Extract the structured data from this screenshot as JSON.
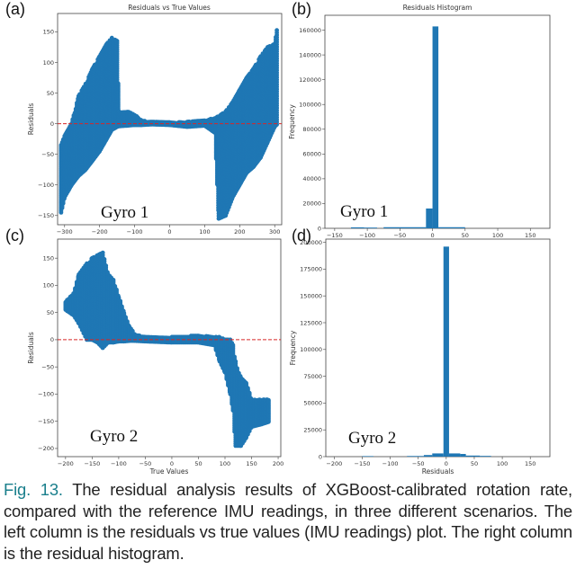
{
  "colors": {
    "marker": "#1f77b4",
    "zero_line": "#d62728",
    "caption_label": "#1a7f8c"
  },
  "chart_data": [
    {
      "panel": "(a)",
      "type": "scatter",
      "title": "Residuals vs True Values",
      "xlabel": "",
      "ylabel": "Residuals",
      "annotation": "Gyro 1",
      "xlim": [
        -320,
        320
      ],
      "ylim": [
        -165,
        180
      ],
      "xticks": [
        -300,
        -200,
        -100,
        0,
        100,
        200,
        300
      ],
      "yticks": [
        -150,
        -100,
        -50,
        0,
        50,
        100,
        150
      ],
      "reference_line": {
        "y": 0,
        "style": "dashed"
      },
      "cloud_extent": {
        "columns": [
          "x",
          "ymin",
          "ymax"
        ],
        "rows": [
          [
            -310,
            -145,
            -35
          ],
          [
            -300,
            -120,
            -20
          ],
          [
            -280,
            -100,
            0
          ],
          [
            -260,
            -85,
            45
          ],
          [
            -240,
            -75,
            65
          ],
          [
            -220,
            -60,
            90
          ],
          [
            -200,
            -45,
            110
          ],
          [
            -180,
            -25,
            130
          ],
          [
            -165,
            -10,
            140
          ],
          [
            -150,
            -5,
            135
          ],
          [
            -145,
            -4,
            20
          ],
          [
            -120,
            -3,
            20
          ],
          [
            -100,
            -2,
            15
          ],
          [
            -80,
            -2,
            5
          ],
          [
            -50,
            -1,
            3
          ],
          [
            0,
            -2,
            2
          ],
          [
            50,
            -5,
            3
          ],
          [
            100,
            -3,
            5
          ],
          [
            130,
            -15,
            10
          ],
          [
            140,
            -155,
            12
          ],
          [
            160,
            -150,
            20
          ],
          [
            180,
            -120,
            35
          ],
          [
            200,
            -100,
            55
          ],
          [
            220,
            -80,
            75
          ],
          [
            240,
            -70,
            90
          ],
          [
            260,
            -55,
            110
          ],
          [
            280,
            -30,
            125
          ],
          [
            300,
            -5,
            130
          ],
          [
            308,
            0,
            160
          ]
        ]
      }
    },
    {
      "panel": "(b)",
      "type": "bar",
      "title": "Residuals Histogram",
      "xlabel": "",
      "ylabel": "Frequency",
      "annotation": "Gyro 1",
      "xlim": [
        -165,
        180
      ],
      "ylim": [
        0,
        172000
      ],
      "xticks": [
        -150,
        -100,
        -50,
        0,
        50,
        100,
        150
      ],
      "yticks": [
        0,
        20000,
        40000,
        60000,
        80000,
        100000,
        120000,
        140000,
        160000
      ],
      "bins": {
        "columns": [
          "start",
          "end",
          "count"
        ],
        "rows": [
          [
            -125,
            -105,
            800
          ],
          [
            -105,
            -85,
            600
          ],
          [
            -75,
            -10,
            900
          ],
          [
            -10,
            0,
            16000
          ],
          [
            0,
            9,
            163000
          ],
          [
            9,
            50,
            900
          ]
        ]
      }
    },
    {
      "panel": "(c)",
      "type": "scatter",
      "title": "",
      "xlabel": "True Values",
      "ylabel": "Residuals",
      "annotation": "Gyro 2",
      "xlim": [
        -215,
        205
      ],
      "ylim": [
        -215,
        185
      ],
      "xticks": [
        -200,
        -150,
        -100,
        -50,
        0,
        50,
        100,
        150,
        200
      ],
      "yticks": [
        -200,
        -150,
        -100,
        -50,
        0,
        50,
        100,
        150
      ],
      "reference_line": {
        "y": 0,
        "style": "dashed"
      },
      "cloud_extent": {
        "columns": [
          "x",
          "ymin",
          "ymax"
        ],
        "rows": [
          [
            -200,
            55,
            70
          ],
          [
            -185,
            45,
            85
          ],
          [
            -175,
            30,
            120
          ],
          [
            -160,
            0,
            140
          ],
          [
            -150,
            0,
            150
          ],
          [
            -140,
            -5,
            155
          ],
          [
            -130,
            -15,
            160
          ],
          [
            -120,
            -5,
            120
          ],
          [
            -110,
            -5,
            110
          ],
          [
            -100,
            -3,
            80
          ],
          [
            -90,
            -3,
            50
          ],
          [
            -80,
            -2,
            25
          ],
          [
            -70,
            -2,
            10
          ],
          [
            -50,
            -3,
            5
          ],
          [
            0,
            -5,
            5
          ],
          [
            50,
            -5,
            8
          ],
          [
            80,
            -10,
            5
          ],
          [
            90,
            -40,
            5
          ],
          [
            100,
            -60,
            0
          ],
          [
            110,
            -100,
            0
          ],
          [
            115,
            -130,
            -10
          ],
          [
            120,
            -195,
            -40
          ],
          [
            130,
            -195,
            -70
          ],
          [
            140,
            -180,
            -80
          ],
          [
            150,
            -160,
            -110
          ],
          [
            170,
            -155,
            -110
          ],
          [
            185,
            -150,
            -110
          ]
        ]
      }
    },
    {
      "panel": "(d)",
      "type": "bar",
      "title": "",
      "xlabel": "Residuals",
      "ylabel": "Frequency",
      "annotation": "Gyro 2",
      "xlim": [
        -215,
        185
      ],
      "ylim": [
        0,
        203000
      ],
      "xticks": [
        -200,
        -150,
        -100,
        -50,
        0,
        50,
        100,
        150
      ],
      "yticks": [
        0,
        25000,
        50000,
        75000,
        100000,
        125000,
        150000,
        175000,
        200000
      ],
      "bins": {
        "columns": [
          "start",
          "end",
          "count"
        ],
        "rows": [
          [
            -150,
            -130,
            500
          ],
          [
            -70,
            -40,
            600
          ],
          [
            -40,
            -25,
            1500
          ],
          [
            -25,
            -5,
            3000
          ],
          [
            -5,
            5,
            196000
          ],
          [
            5,
            25,
            3000
          ],
          [
            25,
            35,
            2500
          ],
          [
            35,
            60,
            1000
          ],
          [
            60,
            80,
            700
          ]
        ]
      }
    }
  ],
  "caption": {
    "label": "Fig. 13.",
    "text": " The residual analysis results of XGBoost-calibrated rotation rate, compared with the reference IMU readings, in three different scenarios. The left column is the residuals vs true values (IMU readings) plot. The right column is the residual histogram."
  }
}
